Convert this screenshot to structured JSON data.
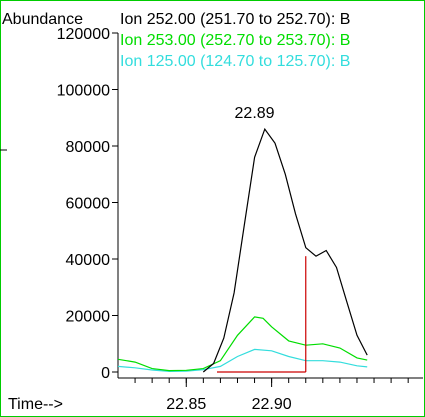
{
  "chart_data": {
    "type": "line",
    "ylabel": "Abundance",
    "xlabel": "Time-->",
    "x_ticks": [
      22.85,
      22.9
    ],
    "x_tick_labels": [
      "22.85",
      "22.90"
    ],
    "y_ticks": [
      0,
      20000,
      40000,
      60000,
      80000,
      100000,
      120000
    ],
    "y_tick_labels": [
      "0",
      "20000",
      "40000",
      "60000",
      "80000",
      "100000",
      "120000"
    ],
    "xlim": [
      22.81,
      22.984
    ],
    "ylim": [
      0,
      120000
    ],
    "grid": false,
    "legend_placement": "top",
    "series": [
      {
        "name": "Ion 252.00 (251.70 to 252.70): B",
        "color": "#000000",
        "x": [
          22.86,
          22.866,
          22.872,
          22.878,
          22.884,
          22.89,
          22.896,
          22.902,
          22.908,
          22.914,
          22.92,
          22.926,
          22.932,
          22.938,
          22.944,
          22.95,
          22.956
        ],
        "y": [
          0,
          3000,
          12000,
          28000,
          52000,
          76000,
          86000,
          81000,
          70000,
          56000,
          44000,
          41000,
          43000,
          37000,
          25000,
          13000,
          6000
        ]
      },
      {
        "name": "Ion 253.00 (252.70 to 253.70): B",
        "color": "#00dd00",
        "x": [
          22.81,
          22.82,
          22.83,
          22.84,
          22.85,
          22.86,
          22.87,
          22.88,
          22.89,
          22.895,
          22.9,
          22.91,
          22.92,
          22.93,
          22.94,
          22.95,
          22.956
        ],
        "y": [
          4500,
          3500,
          1200,
          500,
          600,
          1200,
          4000,
          13000,
          19500,
          19000,
          16000,
          11000,
          9500,
          10000,
          8500,
          5000,
          4200
        ]
      },
      {
        "name": "Ion 125.00 (124.70 to 125.70): B",
        "color": "#33dddd",
        "x": [
          22.81,
          22.82,
          22.83,
          22.84,
          22.85,
          22.86,
          22.87,
          22.88,
          22.89,
          22.9,
          22.91,
          22.92,
          22.93,
          22.94,
          22.95,
          22.956
        ],
        "y": [
          2000,
          1500,
          700,
          200,
          300,
          800,
          2000,
          5500,
          8000,
          7500,
          5500,
          4000,
          4000,
          3500,
          2200,
          1800
        ]
      }
    ],
    "annotations": [
      {
        "text": "22.89",
        "x": 22.89,
        "y": 90000
      }
    ],
    "integration_markers": [
      {
        "x": 22.92,
        "y_top": 41000,
        "color": "#cc0000"
      }
    ]
  }
}
